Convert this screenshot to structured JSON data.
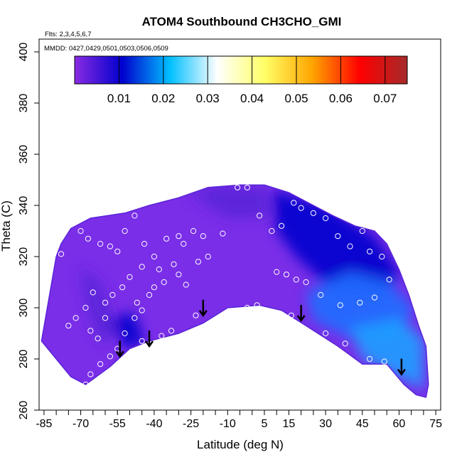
{
  "chart_data": {
    "type": "heatmap",
    "title": "ATOM4 Southbound CH3CHO_GMI",
    "annotations": [
      "Flts: 2,3,4,5,6,7",
      "MMDD: 0427,0429,0501,0503,0506,0509"
    ],
    "xlabel": "Latitude (deg N)",
    "ylabel": "Theta (C)",
    "xlim": [
      -87,
      77
    ],
    "ylim": [
      260,
      405
    ],
    "x_ticks": [
      -85,
      -70,
      -55,
      -40,
      -25,
      -10,
      5,
      15,
      30,
      45,
      60,
      75
    ],
    "x_tick_labels": [
      "-85",
      "-70",
      "-55",
      "-40",
      "-25",
      "-10",
      "5",
      "15",
      "30",
      "45",
      "60",
      "75"
    ],
    "x_minor_ticks": [
      -80,
      -75,
      -65,
      -60,
      -50,
      -45,
      -35,
      -30,
      -20,
      -15,
      -5,
      0,
      10,
      20,
      25,
      35,
      40,
      50,
      55,
      65,
      70
    ],
    "y_ticks": [
      260,
      280,
      300,
      320,
      340,
      360,
      380,
      400
    ],
    "y_tick_labels": [
      "260",
      "280",
      "300",
      "320",
      "340",
      "360",
      "380",
      "400"
    ],
    "colorbar": {
      "range": [
        0.0,
        0.075
      ],
      "ticks": [
        0.01,
        0.02,
        0.03,
        0.04,
        0.05,
        0.06,
        0.07
      ],
      "tick_labels": [
        "0.01",
        "0.02",
        "0.03",
        "0.04",
        "0.05",
        "0.06",
        "0.07"
      ],
      "colors": [
        "#8a2be2",
        "#0000cd",
        "#00bfff",
        "#ffffff",
        "#ffff66",
        "#ffa500",
        "#ff0000",
        "#a52a2a"
      ]
    },
    "field_colors": {
      "purple": "#7a2ee8",
      "dark_purple": "#5a24d8",
      "navy": "#0000cd",
      "blue": "#1e6fff",
      "light_blue": "#1ea0ff",
      "white": "#ffffff"
    },
    "domain_top": [
      [
        -80,
        320
      ],
      [
        -78,
        325
      ],
      [
        -74,
        331
      ],
      [
        -66,
        335
      ],
      [
        -52,
        337
      ],
      [
        -42,
        340
      ],
      [
        -30,
        343
      ],
      [
        -18,
        347
      ],
      [
        -5,
        348
      ],
      [
        5,
        348
      ],
      [
        15,
        345
      ],
      [
        25,
        340
      ],
      [
        33,
        336
      ],
      [
        42,
        332
      ],
      [
        50,
        330
      ],
      [
        55,
        325
      ],
      [
        60,
        315
      ],
      [
        64,
        305
      ],
      [
        68,
        293
      ],
      [
        71,
        285
      ],
      [
        72,
        270
      ]
    ],
    "domain_bottom": [
      [
        -86,
        287
      ],
      [
        -80,
        280
      ],
      [
        -74,
        273
      ],
      [
        -68,
        270
      ],
      [
        -58,
        277
      ],
      [
        -50,
        284
      ],
      [
        -42,
        287
      ],
      [
        -30,
        290
      ],
      [
        -20,
        294
      ],
      [
        -10,
        300
      ],
      [
        3,
        301
      ],
      [
        12,
        299
      ],
      [
        22,
        293
      ],
      [
        35,
        285
      ],
      [
        45,
        278
      ],
      [
        55,
        278
      ],
      [
        62,
        270
      ],
      [
        67,
        266
      ],
      [
        71,
        265
      ]
    ],
    "observations": [
      [
        -78,
        321
      ],
      [
        -70,
        330
      ],
      [
        -67,
        327
      ],
      [
        -62,
        325
      ],
      [
        -58,
        324
      ],
      [
        -55,
        322
      ],
      [
        -52,
        330
      ],
      [
        -48,
        336
      ],
      [
        -44,
        325
      ],
      [
        -40,
        320
      ],
      [
        -35,
        327
      ],
      [
        -30,
        328
      ],
      [
        -28,
        325
      ],
      [
        -24,
        330
      ],
      [
        -20,
        328
      ],
      [
        -18,
        320
      ],
      [
        -22,
        318
      ],
      [
        -32,
        317
      ],
      [
        -38,
        315
      ],
      [
        -45,
        316
      ],
      [
        -50,
        312
      ],
      [
        -53,
        308
      ],
      [
        -57,
        305
      ],
      [
        -60,
        302
      ],
      [
        -65,
        306
      ],
      [
        -68,
        300
      ],
      [
        -72,
        296
      ],
      [
        -75,
        293
      ],
      [
        -66,
        291
      ],
      [
        -63,
        288
      ],
      [
        -58,
        281
      ],
      [
        -55,
        284
      ],
      [
        -52,
        290
      ],
      [
        -48,
        296
      ],
      [
        -45,
        299
      ],
      [
        -42,
        305
      ],
      [
        -40,
        308
      ],
      [
        -36,
        310
      ],
      [
        -30,
        313
      ],
      [
        -27,
        309
      ],
      [
        -23,
        297
      ],
      [
        -12,
        329
      ],
      [
        -6,
        347
      ],
      [
        -2,
        347
      ],
      [
        3,
        336
      ],
      [
        8,
        330
      ],
      [
        12,
        332
      ],
      [
        17,
        341
      ],
      [
        20,
        339
      ],
      [
        25,
        337
      ],
      [
        30,
        335
      ],
      [
        35,
        328
      ],
      [
        40,
        324
      ],
      [
        45,
        330
      ],
      [
        48,
        322
      ],
      [
        53,
        320
      ],
      [
        56,
        311
      ],
      [
        50,
        304
      ],
      [
        44,
        302
      ],
      [
        36,
        301
      ],
      [
        28,
        305
      ],
      [
        22,
        310
      ],
      [
        18,
        311
      ],
      [
        14,
        313
      ],
      [
        10,
        314
      ],
      [
        2,
        301
      ],
      [
        -2,
        300
      ],
      [
        16,
        297
      ],
      [
        30,
        290
      ],
      [
        38,
        286
      ],
      [
        48,
        280
      ],
      [
        54,
        279
      ],
      [
        -62,
        278
      ],
      [
        -66,
        274
      ],
      [
        -68,
        270
      ],
      [
        -45,
        287
      ],
      [
        -37,
        289
      ],
      [
        -33,
        291
      ],
      [
        -60,
        296
      ],
      [
        -47,
        302
      ]
    ],
    "arrows": [
      [
        -54,
        281
      ],
      [
        -42,
        285
      ],
      [
        -20,
        297
      ],
      [
        20,
        295
      ],
      [
        61,
        274
      ]
    ]
  }
}
